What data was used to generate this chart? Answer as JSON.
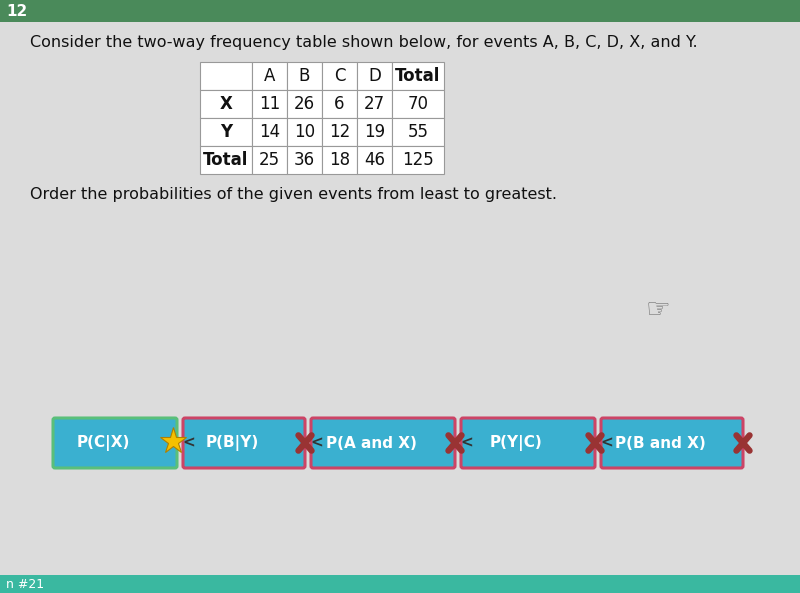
{
  "question_number": "12",
  "title": "Consider the two-way frequency table shown below, for events A, B, C, D, X, and Y.",
  "subtitle": "Order the probabilities of the given events from least to greatest.",
  "table_headers": [
    "",
    "A",
    "B",
    "C",
    "D",
    "Total"
  ],
  "table_rows": [
    [
      "X",
      "11",
      "26",
      "6",
      "27",
      "70"
    ],
    [
      "Y",
      "14",
      "10",
      "12",
      "19",
      "55"
    ],
    [
      "Total",
      "25",
      "36",
      "18",
      "46",
      "125"
    ]
  ],
  "buttons": [
    {
      "label": "P(C|X)",
      "has_star": true,
      "has_x": false,
      "border_color": "#5abf7a"
    },
    {
      "label": "P(B|Y)",
      "has_star": false,
      "has_x": true,
      "border_color": "#cc4466"
    },
    {
      "label": "P(A and X)",
      "has_star": false,
      "has_x": true,
      "border_color": "#cc4466"
    },
    {
      "label": "P(Y|C)",
      "has_star": false,
      "has_x": true,
      "border_color": "#cc4466"
    },
    {
      "label": "P(B and X)",
      "has_star": false,
      "has_x": true,
      "border_color": "#cc4466"
    }
  ],
  "bg_color": "#dcdcdc",
  "header_bar_color": "#4a8a5a",
  "button_bg_color": "#3ab0d0",
  "star_color": "#f5c000",
  "x_color": "#993333",
  "bottom_bar_color": "#3ab8a0",
  "question_num_color": "#ffffff",
  "table_border_color": "#999999",
  "title_fontsize": 11.5,
  "table_fontsize": 12,
  "button_fontsize": 11
}
